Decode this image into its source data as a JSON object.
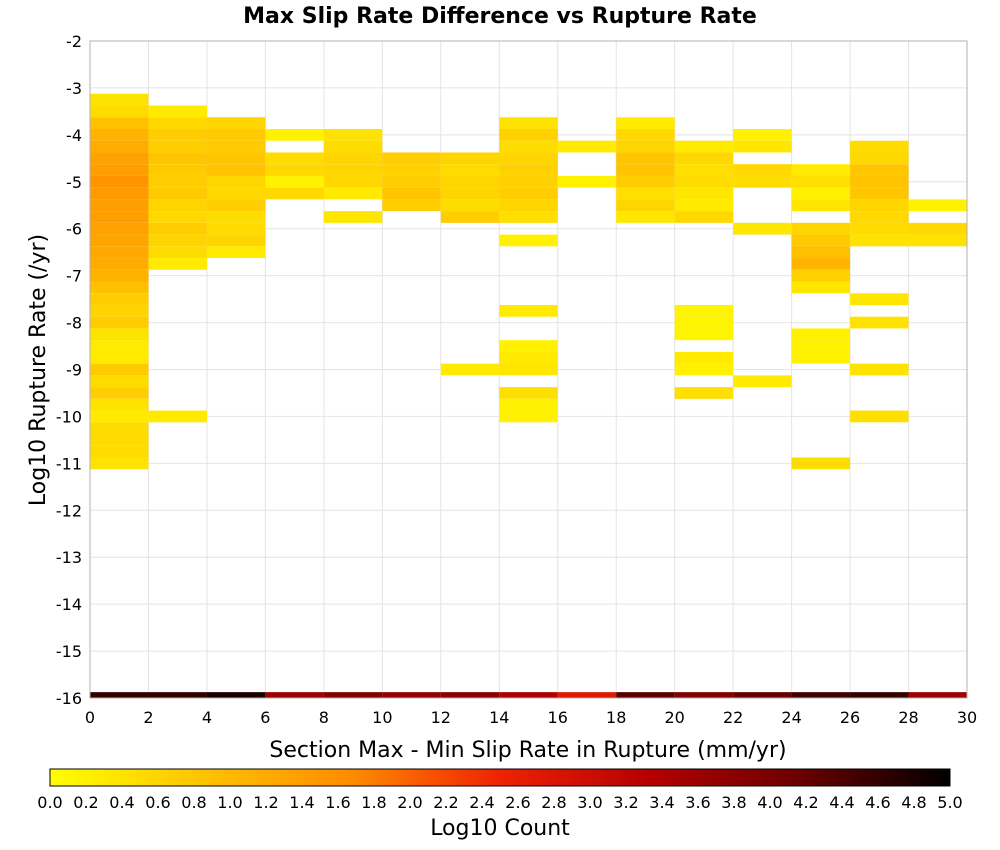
{
  "chart_data": {
    "type": "heatmap",
    "title": "Max Slip Rate Difference vs Rupture Rate",
    "xlabel": "Section Max - Min Slip Rate in Rupture (mm/yr)",
    "ylabel": "Log10 Rupture Rate (/yr)",
    "xlim": [
      0,
      30
    ],
    "ylim": [
      -16,
      -2
    ],
    "x_ticks": [
      "0",
      "2",
      "4",
      "6",
      "8",
      "10",
      "12",
      "14",
      "16",
      "18",
      "20",
      "22",
      "24",
      "26",
      "28",
      "30"
    ],
    "y_ticks": [
      "-2",
      "-3",
      "-4",
      "-5",
      "-6",
      "-7",
      "-8",
      "-9",
      "-10",
      "-11",
      "-12",
      "-13",
      "-14",
      "-15",
      "-16"
    ],
    "x_bin_width": 2,
    "y_bin_height": 0.25,
    "grid": true,
    "colorbar": {
      "label": "Log10 Count",
      "min": 0,
      "max": 5,
      "ticks": [
        "0.0",
        "0.2",
        "0.4",
        "0.6",
        "0.8",
        "1.0",
        "1.2",
        "1.4",
        "1.6",
        "1.8",
        "2.0",
        "2.2",
        "2.4",
        "2.6",
        "2.8",
        "3.0",
        "3.2",
        "3.4",
        "3.6",
        "3.8",
        "4.0",
        "4.2",
        "4.4",
        "4.6",
        "4.8",
        "5.0"
      ],
      "stops": [
        "#ffff00",
        "#ffc400",
        "#ff8c00",
        "#ee2200",
        "#b40000",
        "#6a0000",
        "#000000"
      ]
    },
    "cells": [
      {
        "x": 1,
        "y": -3.25,
        "v": 0.4
      },
      {
        "x": 1,
        "y": -3.5,
        "v": 0.5
      },
      {
        "x": 1,
        "y": -3.75,
        "v": 0.9
      },
      {
        "x": 1,
        "y": -4.0,
        "v": 1.1
      },
      {
        "x": 1,
        "y": -4.25,
        "v": 1.2
      },
      {
        "x": 1,
        "y": -4.5,
        "v": 1.35
      },
      {
        "x": 1,
        "y": -4.75,
        "v": 1.4
      },
      {
        "x": 1,
        "y": -5.0,
        "v": 1.55
      },
      {
        "x": 1,
        "y": -5.25,
        "v": 1.45
      },
      {
        "x": 1,
        "y": -5.5,
        "v": 1.4
      },
      {
        "x": 1,
        "y": -5.75,
        "v": 1.4
      },
      {
        "x": 1,
        "y": -6.0,
        "v": 1.35
      },
      {
        "x": 1,
        "y": -6.25,
        "v": 1.3
      },
      {
        "x": 1,
        "y": -6.5,
        "v": 1.25
      },
      {
        "x": 1,
        "y": -6.75,
        "v": 1.2
      },
      {
        "x": 1,
        "y": -7.0,
        "v": 1.1
      },
      {
        "x": 1,
        "y": -7.25,
        "v": 0.9
      },
      {
        "x": 1,
        "y": -7.5,
        "v": 0.7
      },
      {
        "x": 1,
        "y": -7.75,
        "v": 0.6
      },
      {
        "x": 1,
        "y": -8.0,
        "v": 0.7
      },
      {
        "x": 1,
        "y": -8.25,
        "v": 0.4
      },
      {
        "x": 1,
        "y": -8.5,
        "v": 0.3
      },
      {
        "x": 1,
        "y": -8.75,
        "v": 0.3
      },
      {
        "x": 1,
        "y": -9.0,
        "v": 0.75
      },
      {
        "x": 1,
        "y": -9.25,
        "v": 0.5
      },
      {
        "x": 1,
        "y": -9.5,
        "v": 0.7
      },
      {
        "x": 1,
        "y": -9.75,
        "v": 0.4
      },
      {
        "x": 1,
        "y": -10.0,
        "v": 0.3
      },
      {
        "x": 1,
        "y": -10.25,
        "v": 0.5
      },
      {
        "x": 1,
        "y": -10.5,
        "v": 0.5
      },
      {
        "x": 1,
        "y": -10.75,
        "v": 0.5
      },
      {
        "x": 1,
        "y": -11.0,
        "v": 0.4
      },
      {
        "x": 1,
        "y": -16.0,
        "v": 4.6
      },
      {
        "x": 3,
        "y": -3.5,
        "v": 0.3
      },
      {
        "x": 3,
        "y": -3.75,
        "v": 0.55
      },
      {
        "x": 3,
        "y": -4.0,
        "v": 0.7
      },
      {
        "x": 3,
        "y": -4.25,
        "v": 0.7
      },
      {
        "x": 3,
        "y": -4.5,
        "v": 0.8
      },
      {
        "x": 3,
        "y": -4.75,
        "v": 0.75
      },
      {
        "x": 3,
        "y": -5.0,
        "v": 0.7
      },
      {
        "x": 3,
        "y": -5.25,
        "v": 0.75
      },
      {
        "x": 3,
        "y": -5.5,
        "v": 0.6
      },
      {
        "x": 3,
        "y": -5.75,
        "v": 0.55
      },
      {
        "x": 3,
        "y": -6.0,
        "v": 0.7
      },
      {
        "x": 3,
        "y": -6.25,
        "v": 0.6
      },
      {
        "x": 3,
        "y": -6.5,
        "v": 0.5
      },
      {
        "x": 3,
        "y": -6.75,
        "v": 0.3
      },
      {
        "x": 3,
        "y": -10.0,
        "v": 0.3
      },
      {
        "x": 3,
        "y": -16.0,
        "v": 4.6
      },
      {
        "x": 5,
        "y": -3.75,
        "v": 0.6
      },
      {
        "x": 5,
        "y": -4.0,
        "v": 0.75
      },
      {
        "x": 5,
        "y": -4.25,
        "v": 0.75
      },
      {
        "x": 5,
        "y": -4.5,
        "v": 0.8
      },
      {
        "x": 5,
        "y": -4.75,
        "v": 0.85
      },
      {
        "x": 5,
        "y": -5.0,
        "v": 0.6
      },
      {
        "x": 5,
        "y": -5.25,
        "v": 0.55
      },
      {
        "x": 5,
        "y": -5.5,
        "v": 0.7
      },
      {
        "x": 5,
        "y": -5.75,
        "v": 0.5
      },
      {
        "x": 5,
        "y": -6.0,
        "v": 0.5
      },
      {
        "x": 5,
        "y": -6.25,
        "v": 0.6
      },
      {
        "x": 5,
        "y": -6.5,
        "v": 0.3
      },
      {
        "x": 5,
        "y": -16.0,
        "v": 4.8
      },
      {
        "x": 7,
        "y": -4.0,
        "v": 0.2
      },
      {
        "x": 7,
        "y": -4.5,
        "v": 0.5
      },
      {
        "x": 7,
        "y": -4.75,
        "v": 0.55
      },
      {
        "x": 7,
        "y": -5.0,
        "v": 0.2
      },
      {
        "x": 7,
        "y": -5.25,
        "v": 0.55
      },
      {
        "x": 7,
        "y": -16.0,
        "v": 3.6
      },
      {
        "x": 9,
        "y": -4.0,
        "v": 0.4
      },
      {
        "x": 9,
        "y": -4.25,
        "v": 0.5
      },
      {
        "x": 9,
        "y": -4.5,
        "v": 0.6
      },
      {
        "x": 9,
        "y": -4.75,
        "v": 0.6
      },
      {
        "x": 9,
        "y": -5.0,
        "v": 0.55
      },
      {
        "x": 9,
        "y": -5.25,
        "v": 0.3
      },
      {
        "x": 9,
        "y": -5.75,
        "v": 0.35
      },
      {
        "x": 9,
        "y": -16.0,
        "v": 3.9
      },
      {
        "x": 11,
        "y": -4.5,
        "v": 0.7
      },
      {
        "x": 11,
        "y": -4.75,
        "v": 0.65
      },
      {
        "x": 11,
        "y": -5.0,
        "v": 0.7
      },
      {
        "x": 11,
        "y": -5.25,
        "v": 0.8
      },
      {
        "x": 11,
        "y": -5.5,
        "v": 0.7
      },
      {
        "x": 11,
        "y": -16.0,
        "v": 3.7
      },
      {
        "x": 13,
        "y": -4.5,
        "v": 0.6
      },
      {
        "x": 13,
        "y": -4.75,
        "v": 0.5
      },
      {
        "x": 13,
        "y": -5.0,
        "v": 0.6
      },
      {
        "x": 13,
        "y": -5.25,
        "v": 0.6
      },
      {
        "x": 13,
        "y": -5.5,
        "v": 0.5
      },
      {
        "x": 13,
        "y": -5.75,
        "v": 0.7
      },
      {
        "x": 13,
        "y": -9.0,
        "v": 0.3
      },
      {
        "x": 13,
        "y": -16.0,
        "v": 3.8
      },
      {
        "x": 15,
        "y": -3.75,
        "v": 0.4
      },
      {
        "x": 15,
        "y": -4.0,
        "v": 0.65
      },
      {
        "x": 15,
        "y": -4.25,
        "v": 0.5
      },
      {
        "x": 15,
        "y": -4.5,
        "v": 0.6
      },
      {
        "x": 15,
        "y": -4.75,
        "v": 0.65
      },
      {
        "x": 15,
        "y": -5.0,
        "v": 0.65
      },
      {
        "x": 15,
        "y": -5.25,
        "v": 0.7
      },
      {
        "x": 15,
        "y": -5.5,
        "v": 0.6
      },
      {
        "x": 15,
        "y": -5.75,
        "v": 0.45
      },
      {
        "x": 15,
        "y": -6.25,
        "v": 0.2
      },
      {
        "x": 15,
        "y": -7.75,
        "v": 0.3
      },
      {
        "x": 15,
        "y": -8.5,
        "v": 0.2
      },
      {
        "x": 15,
        "y": -8.75,
        "v": 0.3
      },
      {
        "x": 15,
        "y": -9.0,
        "v": 0.35
      },
      {
        "x": 15,
        "y": -9.5,
        "v": 0.45
      },
      {
        "x": 15,
        "y": -9.75,
        "v": 0.2
      },
      {
        "x": 15,
        "y": -10.0,
        "v": 0.2
      },
      {
        "x": 15,
        "y": -16.0,
        "v": 3.4
      },
      {
        "x": 17,
        "y": -4.25,
        "v": 0.3
      },
      {
        "x": 17,
        "y": -5.0,
        "v": 0.2
      },
      {
        "x": 17,
        "y": -16.0,
        "v": 2.7
      },
      {
        "x": 19,
        "y": -3.75,
        "v": 0.3
      },
      {
        "x": 19,
        "y": -4.0,
        "v": 0.55
      },
      {
        "x": 19,
        "y": -4.25,
        "v": 0.6
      },
      {
        "x": 19,
        "y": -4.5,
        "v": 0.8
      },
      {
        "x": 19,
        "y": -4.75,
        "v": 0.85
      },
      {
        "x": 19,
        "y": -5.0,
        "v": 0.7
      },
      {
        "x": 19,
        "y": -5.25,
        "v": 0.45
      },
      {
        "x": 19,
        "y": -5.5,
        "v": 0.6
      },
      {
        "x": 19,
        "y": -5.75,
        "v": 0.35
      },
      {
        "x": 19,
        "y": -16.0,
        "v": 4.3
      },
      {
        "x": 21,
        "y": -4.25,
        "v": 0.3
      },
      {
        "x": 21,
        "y": -4.5,
        "v": 0.55
      },
      {
        "x": 21,
        "y": -4.75,
        "v": 0.45
      },
      {
        "x": 21,
        "y": -5.0,
        "v": 0.5
      },
      {
        "x": 21,
        "y": -5.25,
        "v": 0.35
      },
      {
        "x": 21,
        "y": -5.5,
        "v": 0.3
      },
      {
        "x": 21,
        "y": -5.75,
        "v": 0.55
      },
      {
        "x": 21,
        "y": -7.75,
        "v": 0.15
      },
      {
        "x": 21,
        "y": -8.0,
        "v": 0.15
      },
      {
        "x": 21,
        "y": -8.25,
        "v": 0.15
      },
      {
        "x": 21,
        "y": -8.75,
        "v": 0.3
      },
      {
        "x": 21,
        "y": -9.0,
        "v": 0.2
      },
      {
        "x": 21,
        "y": -9.5,
        "v": 0.45
      },
      {
        "x": 21,
        "y": -16.0,
        "v": 3.9
      },
      {
        "x": 23,
        "y": -4.0,
        "v": 0.2
      },
      {
        "x": 23,
        "y": -4.25,
        "v": 0.35
      },
      {
        "x": 23,
        "y": -4.75,
        "v": 0.55
      },
      {
        "x": 23,
        "y": -5.0,
        "v": 0.5
      },
      {
        "x": 23,
        "y": -6.0,
        "v": 0.35
      },
      {
        "x": 23,
        "y": -9.25,
        "v": 0.3
      },
      {
        "x": 23,
        "y": -16.0,
        "v": 4.2
      },
      {
        "x": 25,
        "y": -4.75,
        "v": 0.3
      },
      {
        "x": 25,
        "y": -5.0,
        "v": 0.45
      },
      {
        "x": 25,
        "y": -5.25,
        "v": 0.2
      },
      {
        "x": 25,
        "y": -5.5,
        "v": 0.35
      },
      {
        "x": 25,
        "y": -6.0,
        "v": 0.6
      },
      {
        "x": 25,
        "y": -6.25,
        "v": 0.75
      },
      {
        "x": 25,
        "y": -6.5,
        "v": 0.9
      },
      {
        "x": 25,
        "y": -6.75,
        "v": 1.05
      },
      {
        "x": 25,
        "y": -7.0,
        "v": 0.65
      },
      {
        "x": 25,
        "y": -7.25,
        "v": 0.35
      },
      {
        "x": 25,
        "y": -8.25,
        "v": 0.2
      },
      {
        "x": 25,
        "y": -8.5,
        "v": 0.2
      },
      {
        "x": 25,
        "y": -8.75,
        "v": 0.2
      },
      {
        "x": 25,
        "y": -11.0,
        "v": 0.5
      },
      {
        "x": 25,
        "y": -16.0,
        "v": 4.5
      },
      {
        "x": 27,
        "y": -4.25,
        "v": 0.5
      },
      {
        "x": 27,
        "y": -4.5,
        "v": 0.55
      },
      {
        "x": 27,
        "y": -4.75,
        "v": 0.8
      },
      {
        "x": 27,
        "y": -5.0,
        "v": 0.85
      },
      {
        "x": 27,
        "y": -5.25,
        "v": 0.8
      },
      {
        "x": 27,
        "y": -5.5,
        "v": 0.6
      },
      {
        "x": 27,
        "y": -5.75,
        "v": 0.55
      },
      {
        "x": 27,
        "y": -6.0,
        "v": 0.5
      },
      {
        "x": 27,
        "y": -6.25,
        "v": 0.4
      },
      {
        "x": 27,
        "y": -7.5,
        "v": 0.35
      },
      {
        "x": 27,
        "y": -8.0,
        "v": 0.4
      },
      {
        "x": 27,
        "y": -9.0,
        "v": 0.4
      },
      {
        "x": 27,
        "y": -10.0,
        "v": 0.45
      },
      {
        "x": 27,
        "y": -16.0,
        "v": 4.6
      },
      {
        "x": 29,
        "y": -5.5,
        "v": 0.2
      },
      {
        "x": 29,
        "y": -6.0,
        "v": 0.55
      },
      {
        "x": 29,
        "y": -6.25,
        "v": 0.4
      },
      {
        "x": 29,
        "y": -16.0,
        "v": 3.6
      }
    ]
  }
}
